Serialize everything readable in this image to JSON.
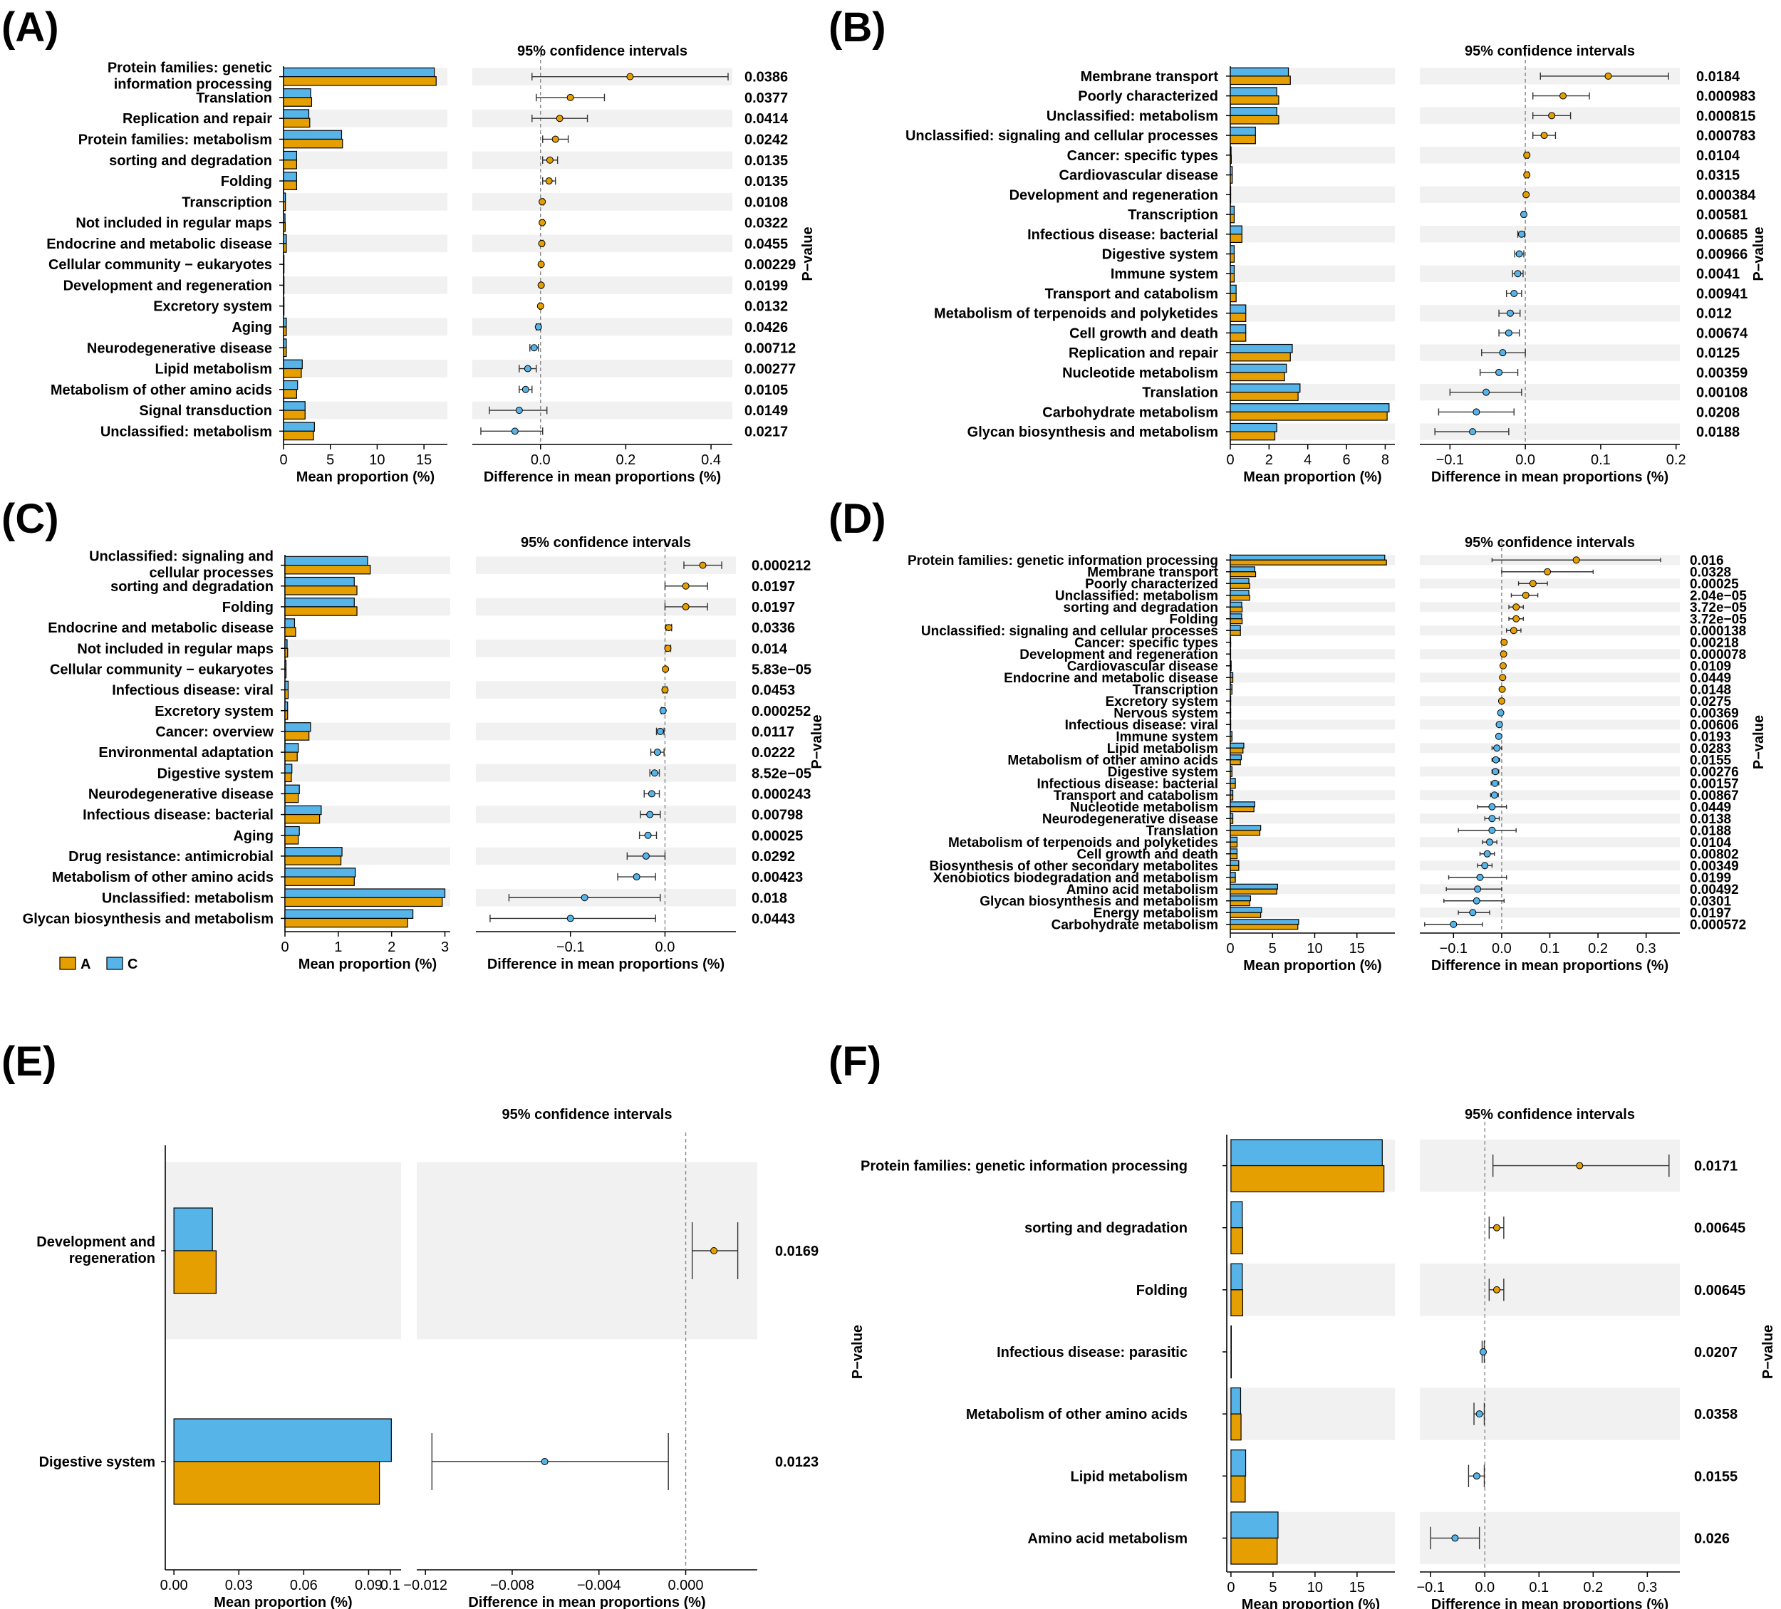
{
  "figure": {
    "group_a_label": "A",
    "group_c_label": "C",
    "ci_title": "95% confidence intervals",
    "left_xlabel": "Mean proportion (%)",
    "right_xlabel": "Difference in mean proportions (%)",
    "pvalue_label": "P−value",
    "colors": {
      "A": "#E69F00",
      "C": "#56B4E9",
      "stripe": "#f1f1f1",
      "outline": "#000000"
    }
  },
  "chart_data": [
    {
      "panel": "(A)",
      "type": "bar",
      "categories": [
        "Protein families: genetic information processing",
        "Translation",
        "Replication and repair",
        "Protein families: metabolism",
        "sorting and degradation",
        "Folding",
        "Transcription",
        "Not included in regular maps",
        "Endocrine and metabolic disease",
        "Cellular community − eukaryotes",
        "Development and regeneration",
        "Excretory system",
        "Aging",
        "Neurodegenerative disease",
        "Lipid metabolism",
        "Metabolism of other amino acids",
        "Signal transduction",
        "Unclassified: metabolism"
      ],
      "series": [
        {
          "name": "A",
          "values": [
            16.3,
            3.0,
            2.8,
            6.3,
            1.4,
            1.4,
            0.2,
            0.18,
            0.3,
            0.05,
            0.05,
            0.05,
            0.3,
            0.3,
            1.9,
            1.4,
            2.3,
            3.2
          ]
        },
        {
          "name": "C",
          "values": [
            16.1,
            2.9,
            2.7,
            6.2,
            1.4,
            1.4,
            0.2,
            0.16,
            0.3,
            0.05,
            0.05,
            0.05,
            0.3,
            0.3,
            2.0,
            1.5,
            2.3,
            3.3
          ]
        }
      ],
      "diff": [
        0.21,
        0.07,
        0.045,
        0.035,
        0.022,
        0.02,
        0.004,
        0.004,
        0.003,
        0.0015,
        0.0015,
        0.0,
        -0.005,
        -0.015,
        -0.03,
        -0.035,
        -0.05,
        -0.06
      ],
      "ci_low": [
        -0.02,
        -0.01,
        -0.02,
        0.005,
        0.005,
        0.005,
        0.001,
        0.001,
        0.0,
        0.0,
        0.0,
        -0.002,
        -0.01,
        -0.025,
        -0.05,
        -0.05,
        -0.12,
        -0.14
      ],
      "ci_high": [
        0.44,
        0.15,
        0.11,
        0.065,
        0.04,
        0.035,
        0.007,
        0.007,
        0.006,
        0.003,
        0.003,
        0.002,
        0.0,
        -0.005,
        -0.01,
        -0.02,
        0.015,
        0.005
      ],
      "pvalues": [
        "0.0386",
        "0.0377",
        "0.0414",
        "0.0242",
        "0.0135",
        "0.0135",
        "0.0108",
        "0.0322",
        "0.0455",
        "0.00229",
        "0.0199",
        "0.0132",
        "0.0426",
        "0.00712",
        "0.00277",
        "0.0105",
        "0.0149",
        "0.0217"
      ],
      "xlim_left": [
        0,
        17.5
      ],
      "xticks_left": [
        0,
        5,
        10,
        15
      ],
      "xlim_right": [
        -0.16,
        0.45
      ],
      "xticks_right": [
        0.0,
        0.2,
        0.4
      ]
    },
    {
      "panel": "(B)",
      "type": "bar",
      "categories": [
        "Membrane transport",
        "Poorly characterized",
        "Unclassified: metabolism",
        "Unclassified: signaling and cellular processes",
        "Cancer: specific types",
        "Cardiovascular disease",
        "Development and regeneration",
        "Transcription",
        "Infectious disease: bacterial",
        "Digestive system",
        "Immune system",
        "Transport and catabolism",
        "Metabolism of terpenoids and polyketides",
        "Cell growth and death",
        "Replication and repair",
        "Nucleotide metabolism",
        "Translation",
        "Carbohydrate metabolism",
        "Glycan biosynthesis and metabolism"
      ],
      "series": [
        {
          "name": "A",
          "values": [
            3.1,
            2.5,
            2.5,
            1.3,
            0.05,
            0.1,
            0.02,
            0.2,
            0.6,
            0.2,
            0.2,
            0.3,
            0.8,
            0.8,
            3.1,
            2.8,
            3.5,
            8.1,
            2.3
          ]
        },
        {
          "name": "C",
          "values": [
            3.0,
            2.4,
            2.4,
            1.3,
            0.04,
            0.1,
            0.02,
            0.2,
            0.6,
            0.2,
            0.2,
            0.3,
            0.8,
            0.8,
            3.2,
            2.9,
            3.6,
            8.2,
            2.4
          ]
        }
      ],
      "diff": [
        0.11,
        0.05,
        0.035,
        0.025,
        0.002,
        0.002,
        0.001,
        -0.002,
        -0.005,
        -0.008,
        -0.01,
        -0.015,
        -0.02,
        -0.022,
        -0.03,
        -0.035,
        -0.052,
        -0.065,
        -0.07
      ],
      "ci_low": [
        0.02,
        0.01,
        0.01,
        0.01,
        0.0,
        0.0,
        0.0,
        -0.004,
        -0.01,
        -0.014,
        -0.017,
        -0.025,
        -0.035,
        -0.035,
        -0.058,
        -0.06,
        -0.1,
        -0.115,
        -0.12
      ],
      "ci_high": [
        0.19,
        0.085,
        0.06,
        0.04,
        0.004,
        0.004,
        0.002,
        0.0,
        -0.001,
        -0.002,
        -0.003,
        -0.005,
        -0.007,
        -0.008,
        0.0,
        -0.01,
        -0.005,
        -0.015,
        -0.022
      ],
      "pvalues": [
        "0.0184",
        "0.000983",
        "0.000815",
        "0.000783",
        "0.0104",
        "0.0315",
        "0.000384",
        "0.00581",
        "0.00685",
        "0.00966",
        "0.0041",
        "0.00941",
        "0.012",
        "0.00674",
        "0.0125",
        "0.00359",
        "0.00108",
        "0.0208",
        "0.0188"
      ],
      "xlim_left": [
        0,
        8.5
      ],
      "xticks_left": [
        0,
        2,
        4,
        6,
        8
      ],
      "xlim_right": [
        -0.14,
        0.205
      ],
      "xticks_right": [
        -0.1,
        0.0,
        0.1,
        0.2
      ]
    },
    {
      "panel": "(C)",
      "type": "bar",
      "categories": [
        "Unclassified: signaling and cellular processes",
        "sorting and degradation",
        "Folding",
        "Endocrine and metabolic disease",
        "Not included in regular maps",
        "Cellular community − eukaryotes",
        "Infectious disease: viral",
        "Excretory system",
        "Cancer: overview",
        "Environmental adaptation",
        "Digestive system",
        "Neurodegenerative disease",
        "Infectious disease: bacterial",
        "Aging",
        "Drug resistance: antimicrobial",
        "Metabolism of other amino acids",
        "Unclassified: metabolism",
        "Glycan biosynthesis and metabolism"
      ],
      "series": [
        {
          "name": "A",
          "values": [
            1.6,
            1.35,
            1.35,
            0.2,
            0.05,
            0.02,
            0.06,
            0.05,
            0.45,
            0.23,
            0.12,
            0.25,
            0.65,
            0.25,
            1.05,
            1.3,
            2.95,
            2.3
          ]
        },
        {
          "name": "C",
          "values": [
            1.55,
            1.3,
            1.3,
            0.18,
            0.04,
            0.02,
            0.06,
            0.05,
            0.48,
            0.25,
            0.13,
            0.27,
            0.68,
            0.27,
            1.07,
            1.32,
            3.0,
            2.4
          ]
        }
      ],
      "diff": [
        0.04,
        0.022,
        0.022,
        0.004,
        0.003,
        0.0005,
        0.0,
        -0.002,
        -0.005,
        -0.008,
        -0.011,
        -0.014,
        -0.016,
        -0.018,
        -0.02,
        -0.03,
        -0.085,
        -0.1
      ],
      "ci_low": [
        0.02,
        0.0,
        0.0,
        0.001,
        0.001,
        0.0,
        -0.002,
        -0.004,
        -0.009,
        -0.015,
        -0.016,
        -0.022,
        -0.026,
        -0.027,
        -0.04,
        -0.05,
        -0.165,
        -0.185
      ],
      "ci_high": [
        0.06,
        0.045,
        0.045,
        0.007,
        0.006,
        0.001,
        0.002,
        0.0,
        -0.001,
        -0.001,
        -0.006,
        -0.006,
        -0.005,
        -0.009,
        0.0,
        -0.01,
        -0.005,
        -0.01
      ],
      "pvalues": [
        "0.000212",
        "0.0197",
        "0.0197",
        "0.0336",
        "0.014",
        "5.83e−05",
        "0.0453",
        "0.000252",
        "0.0117",
        "0.0222",
        "8.52e−05",
        "0.000243",
        "0.00798",
        "0.00025",
        "0.0292",
        "0.00423",
        "0.018",
        "0.0443"
      ],
      "xlim_left": [
        0,
        3.1
      ],
      "xticks_left": [
        0,
        1,
        2,
        3
      ],
      "xlim_right": [
        -0.2,
        0.075
      ],
      "xticks_right": [
        -0.1,
        0.0
      ]
    },
    {
      "panel": "(D)",
      "type": "bar",
      "categories": [
        "Protein families: genetic information processing",
        "Membrane transport",
        "Poorly characterized",
        "Unclassified: metabolism",
        "sorting and degradation",
        "Folding",
        "Unclassified: signaling and cellular processes",
        "Cancer: specific types",
        "Development and regeneration",
        "Cardiovascular disease",
        "Endocrine and metabolic disease",
        "Transcription",
        "Excretory system",
        "Nervous system",
        "Infectious disease: viral",
        "Immune system",
        "Lipid metabolism",
        "Metabolism of other amino acids",
        "Digestive system",
        "Infectious disease: bacterial",
        "Transport and catabolism",
        "Nucleotide metabolism",
        "Neurodegenerative disease",
        "Translation",
        "Metabolism of terpenoids and polyketides",
        "Cell growth and death",
        "Biosynthesis of other secondary metabolites",
        "Xenobiotics biodegradation and metabolism",
        "Amino acid metabolism",
        "Glycan biosynthesis and metabolism",
        "Energy metabolism",
        "Carbohydrate metabolism"
      ],
      "series": [
        {
          "name": "A",
          "values": [
            18.5,
            3.0,
            2.3,
            2.3,
            1.4,
            1.4,
            1.2,
            0.05,
            0.02,
            0.1,
            0.3,
            0.2,
            0.05,
            0.05,
            0.05,
            0.2,
            1.5,
            1.2,
            0.2,
            0.6,
            0.3,
            2.8,
            0.3,
            3.5,
            0.8,
            0.8,
            1.0,
            0.6,
            5.5,
            2.3,
            3.6,
            8.0
          ]
        },
        {
          "name": "C",
          "values": [
            18.3,
            2.9,
            2.2,
            2.2,
            1.35,
            1.35,
            1.2,
            0.04,
            0.02,
            0.1,
            0.3,
            0.2,
            0.05,
            0.05,
            0.05,
            0.2,
            1.6,
            1.3,
            0.2,
            0.6,
            0.3,
            2.9,
            0.3,
            3.6,
            0.8,
            0.8,
            1.0,
            0.6,
            5.6,
            2.4,
            3.7,
            8.1
          ]
        }
      ],
      "diff": [
        0.155,
        0.095,
        0.065,
        0.05,
        0.03,
        0.03,
        0.025,
        0.005,
        0.004,
        0.003,
        0.002,
        0.001,
        0.0,
        -0.002,
        -0.005,
        -0.006,
        -0.01,
        -0.012,
        -0.013,
        -0.014,
        -0.015,
        -0.02,
        -0.02,
        -0.02,
        -0.025,
        -0.03,
        -0.035,
        -0.045,
        -0.05,
        -0.052,
        -0.06,
        -0.1
      ],
      "ci_low": [
        -0.02,
        0.0,
        0.035,
        0.02,
        0.015,
        0.015,
        0.01,
        0.002,
        0.002,
        0.001,
        0.0,
        0.0,
        -0.002,
        -0.004,
        -0.01,
        -0.01,
        -0.02,
        -0.02,
        -0.02,
        -0.022,
        -0.023,
        -0.05,
        -0.035,
        -0.09,
        -0.04,
        -0.045,
        -0.05,
        -0.11,
        -0.115,
        -0.12,
        -0.09,
        -0.16
      ],
      "ci_high": [
        0.33,
        0.19,
        0.095,
        0.075,
        0.045,
        0.045,
        0.04,
        0.008,
        0.006,
        0.005,
        0.004,
        0.002,
        0.002,
        0.0,
        0.0,
        -0.002,
        0.0,
        -0.004,
        -0.006,
        -0.006,
        -0.007,
        0.01,
        -0.005,
        0.03,
        -0.01,
        -0.015,
        -0.02,
        0.01,
        0.0,
        0.005,
        -0.025,
        -0.04
      ],
      "pvalues": [
        "0.016",
        "0.0328",
        "0.00025",
        "2.04e−05",
        "3.72e−05",
        "3.72e−05",
        "0.000138",
        "0.00218",
        "0.000078",
        "0.0109",
        "0.0449",
        "0.0148",
        "0.0275",
        "0.00369",
        "0.00606",
        "0.0193",
        "0.0283",
        "0.0155",
        "0.00276",
        "0.00157",
        "0.00867",
        "0.0449",
        "0.0138",
        "0.0188",
        "0.0104",
        "0.00802",
        "0.00349",
        "0.0199",
        "0.00492",
        "0.0301",
        "0.0197",
        "0.000572"
      ],
      "xlim_left": [
        0,
        19.5
      ],
      "xticks_left": [
        0,
        5,
        10,
        15
      ],
      "xlim_right": [
        -0.17,
        0.37
      ],
      "xticks_right": [
        -0.1,
        0.0,
        0.1,
        0.2,
        0.3
      ]
    },
    {
      "panel": "(E)",
      "type": "bar",
      "categories": [
        "Development and regeneration",
        "Digestive system"
      ],
      "series": [
        {
          "name": "A",
          "values": [
            0.0195,
            0.095
          ]
        },
        {
          "name": "C",
          "values": [
            0.0178,
            0.1005
          ]
        }
      ],
      "diff": [
        0.0013,
        -0.0065
      ],
      "ci_low": [
        0.0003,
        -0.0117
      ],
      "ci_high": [
        0.0024,
        -0.0008
      ],
      "pvalues": [
        "0.0169",
        "0.0123"
      ],
      "xlim_left": [
        -0.004,
        0.105
      ],
      "xticks_left": [
        0.0,
        0.03,
        0.06,
        0.09,
        0.1
      ],
      "xticks_left_labels": [
        "0.00",
        "0.03",
        "0.06",
        "0.09",
        "0.1"
      ],
      "xlim_right": [
        -0.0124,
        0.0033
      ],
      "xticks_right": [
        -0.012,
        -0.008,
        -0.004,
        0.0
      ],
      "xticks_right_labels": [
        "−0.012",
        "−0.008",
        "−0.004",
        "0.000"
      ]
    },
    {
      "panel": "(F)",
      "type": "bar",
      "categories": [
        "Protein families: genetic information processing",
        "sorting and degradation",
        "Folding",
        "Infectious disease: parasitic",
        "Metabolism of other amino acids",
        "Lipid metabolism",
        "Amino acid metabolism"
      ],
      "series": [
        {
          "name": "A",
          "values": [
            18.2,
            1.4,
            1.4,
            0.02,
            1.2,
            1.7,
            5.5
          ]
        },
        {
          "name": "C",
          "values": [
            18.0,
            1.35,
            1.35,
            0.02,
            1.15,
            1.75,
            5.6
          ]
        }
      ],
      "diff": [
        0.175,
        0.022,
        0.022,
        -0.003,
        -0.01,
        -0.015,
        -0.055
      ],
      "ci_low": [
        0.015,
        0.008,
        0.008,
        -0.005,
        -0.02,
        -0.03,
        -0.1
      ],
      "ci_high": [
        0.34,
        0.035,
        0.035,
        -0.001,
        -0.001,
        -0.001,
        -0.01
      ],
      "pvalues": [
        "0.0171",
        "0.00645",
        "0.00645",
        "0.0207",
        "0.0358",
        "0.0155",
        "0.026"
      ],
      "xlim_left": [
        -0.5,
        19.5
      ],
      "xticks_left": [
        0,
        5,
        10,
        15
      ],
      "xlim_right": [
        -0.12,
        0.36
      ],
      "xticks_right": [
        -0.1,
        0.0,
        0.1,
        0.2,
        0.3
      ]
    }
  ]
}
